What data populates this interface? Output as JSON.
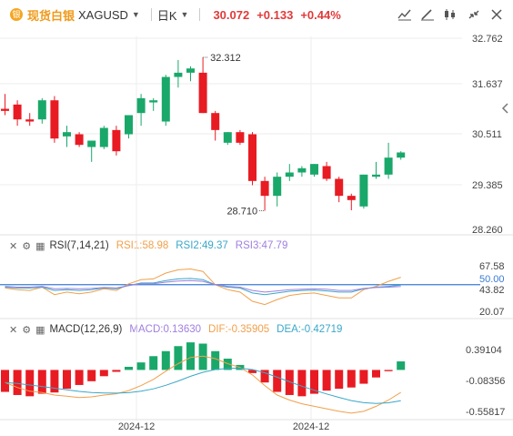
{
  "header": {
    "instrument_name": "现货白银",
    "symbol": "XAGUSD",
    "period": "日K",
    "price": "30.072",
    "change": "+0.133",
    "change_pct": "+0.44%",
    "icons": [
      "silver-coin-icon",
      "chevron-down-icon",
      "chevron-down-icon",
      "line-chart-icon",
      "draw-tool-icon",
      "candle-style-icon",
      "compress-icon",
      "close-icon",
      "chevron-left-icon"
    ]
  },
  "chart_data": [
    {
      "type": "candlestick",
      "title": "",
      "x_ticks": [
        "2024-12",
        "2024-12"
      ],
      "y_ticks": [
        "32.762",
        "31.637",
        "30.511",
        "29.385",
        "28.260"
      ],
      "ylim": [
        28.26,
        32.762
      ],
      "annotations": {
        "high_label": "32.312",
        "low_label": "28.710"
      },
      "colors": {
        "up": "#1aa86a",
        "down": "#e81b23"
      },
      "candles": [
        {
          "o": 31.1,
          "h": 31.45,
          "l": 30.95,
          "c": 31.05
        },
        {
          "o": 31.2,
          "h": 31.3,
          "l": 30.7,
          "c": 30.85
        },
        {
          "o": 30.85,
          "h": 31.0,
          "l": 30.7,
          "c": 30.8
        },
        {
          "o": 30.85,
          "h": 31.35,
          "l": 30.75,
          "c": 31.3
        },
        {
          "o": 31.3,
          "h": 31.4,
          "l": 30.3,
          "c": 30.4
        },
        {
          "o": 30.45,
          "h": 30.7,
          "l": 30.2,
          "c": 30.55
        },
        {
          "o": 30.5,
          "h": 30.55,
          "l": 30.2,
          "c": 30.25
        },
        {
          "o": 30.2,
          "h": 30.35,
          "l": 29.85,
          "c": 30.35
        },
        {
          "o": 30.2,
          "h": 30.7,
          "l": 30.15,
          "c": 30.65
        },
        {
          "o": 30.6,
          "h": 30.7,
          "l": 30.0,
          "c": 30.1
        },
        {
          "o": 30.5,
          "h": 30.95,
          "l": 30.4,
          "c": 30.95
        },
        {
          "o": 31.0,
          "h": 31.45,
          "l": 30.7,
          "c": 31.35
        },
        {
          "o": 31.25,
          "h": 31.35,
          "l": 31.05,
          "c": 31.3
        },
        {
          "o": 30.8,
          "h": 31.9,
          "l": 30.7,
          "c": 31.85
        },
        {
          "o": 31.85,
          "h": 32.25,
          "l": 31.6,
          "c": 31.95
        },
        {
          "o": 31.95,
          "h": 32.1,
          "l": 31.75,
          "c": 32.05
        },
        {
          "o": 31.95,
          "h": 32.312,
          "l": 31.0,
          "c": 31.0
        },
        {
          "o": 31.0,
          "h": 31.05,
          "l": 30.35,
          "c": 30.6
        },
        {
          "o": 30.3,
          "h": 30.55,
          "l": 30.25,
          "c": 30.55
        },
        {
          "o": 30.55,
          "h": 30.6,
          "l": 30.25,
          "c": 30.3
        },
        {
          "o": 30.5,
          "h": 30.55,
          "l": 29.3,
          "c": 29.4
        },
        {
          "o": 29.4,
          "h": 29.5,
          "l": 28.7,
          "c": 29.05
        },
        {
          "o": 29.05,
          "h": 29.6,
          "l": 28.8,
          "c": 29.5
        },
        {
          "o": 29.5,
          "h": 29.8,
          "l": 29.4,
          "c": 29.6
        },
        {
          "o": 29.6,
          "h": 29.75,
          "l": 29.5,
          "c": 29.7
        },
        {
          "o": 29.55,
          "h": 29.8,
          "l": 29.5,
          "c": 29.8
        },
        {
          "o": 29.75,
          "h": 29.85,
          "l": 29.4,
          "c": 29.45
        },
        {
          "o": 29.45,
          "h": 29.5,
          "l": 28.9,
          "c": 29.05
        },
        {
          "o": 29.05,
          "h": 29.1,
          "l": 28.71,
          "c": 28.95
        },
        {
          "o": 28.8,
          "h": 29.55,
          "l": 28.75,
          "c": 29.55
        },
        {
          "o": 29.5,
          "h": 29.85,
          "l": 29.45,
          "c": 29.55
        },
        {
          "o": 29.55,
          "h": 30.3,
          "l": 29.45,
          "c": 29.95
        },
        {
          "o": 29.95,
          "h": 30.1,
          "l": 29.9,
          "c": 30.072
        }
      ]
    },
    {
      "type": "line",
      "title": "RSI(7,14,21)",
      "legend": [
        {
          "label": "RSI1:58.98",
          "color": "#f0a04b"
        },
        {
          "label": "RSI2:49.37",
          "color": "#3aa7c9"
        },
        {
          "label": "RSI3:47.79",
          "color": "#a07fe0"
        }
      ],
      "y_ticks": [
        "67.58",
        "50.00",
        "43.82",
        "20.07"
      ],
      "ylim": [
        20.07,
        75
      ],
      "reference_line": 50,
      "series": [
        {
          "name": "RSI1",
          "color": "#f0a04b",
          "values": [
            46,
            44,
            43,
            47,
            38,
            41,
            39,
            41,
            45,
            43,
            51,
            56,
            57,
            64,
            68,
            69,
            66,
            50,
            44,
            41,
            30,
            26,
            32,
            37,
            39,
            40,
            37,
            34,
            34,
            44,
            48,
            54,
            58.98
          ]
        },
        {
          "name": "RSI2",
          "color": "#3aa7c9",
          "values": [
            47,
            46,
            46,
            47,
            43,
            44,
            43,
            44,
            46,
            45,
            49,
            52,
            52,
            55,
            57,
            57.5,
            56,
            50,
            47,
            46,
            40,
            38,
            40,
            42,
            43,
            43.5,
            42.5,
            41,
            41,
            45,
            47,
            48,
            49.37
          ]
        },
        {
          "name": "RSI3",
          "color": "#a07fe0",
          "values": [
            48,
            47,
            47,
            48,
            45,
            45.5,
            45,
            45.5,
            46.5,
            46,
            49,
            51,
            51,
            53,
            54.5,
            55,
            54,
            50,
            48,
            47,
            43,
            41,
            42.5,
            44,
            44.5,
            45,
            44.5,
            43,
            43,
            45.5,
            46.5,
            47,
            47.79
          ]
        }
      ]
    },
    {
      "type": "bar",
      "title": "MACD(12,26,9)",
      "legend": [
        {
          "label": "MACD:0.13630",
          "color": "#a07fe0"
        },
        {
          "label": "DIF:-0.35905",
          "color": "#f0a04b"
        },
        {
          "label": "DEA:-0.42719",
          "color": "#3aa7c9"
        }
      ],
      "y_ticks": [
        "0.39104",
        "-0.08356",
        "-0.55817"
      ],
      "ylim": [
        -0.72,
        0.5
      ],
      "histogram": [
        -0.35,
        -0.4,
        -0.42,
        -0.38,
        -0.36,
        -0.3,
        -0.24,
        -0.18,
        -0.1,
        -0.03,
        0.05,
        0.12,
        0.22,
        0.3,
        0.38,
        0.44,
        0.42,
        0.3,
        0.18,
        0.08,
        -0.05,
        -0.2,
        -0.35,
        -0.4,
        -0.42,
        -0.38,
        -0.33,
        -0.3,
        -0.28,
        -0.22,
        -0.12,
        -0.02,
        0.1363
      ],
      "dif": [
        -0.2,
        -0.28,
        -0.34,
        -0.36,
        -0.4,
        -0.42,
        -0.44,
        -0.43,
        -0.4,
        -0.38,
        -0.33,
        -0.25,
        -0.15,
        -0.02,
        0.1,
        0.2,
        0.22,
        0.18,
        0.1,
        0.04,
        -0.08,
        -0.25,
        -0.4,
        -0.48,
        -0.54,
        -0.58,
        -0.62,
        -0.66,
        -0.69,
        -0.66,
        -0.58,
        -0.48,
        -0.35905
      ]
    }
  ]
}
